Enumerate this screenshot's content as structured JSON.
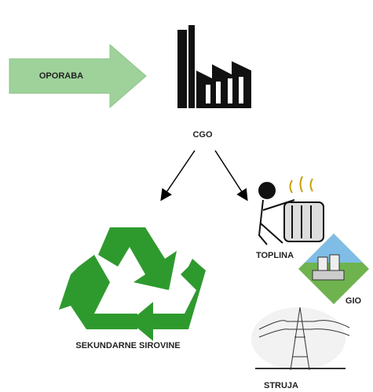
{
  "nodes": [
    {
      "label": "OPORABA"
    },
    {
      "label": "CGO"
    },
    {
      "label": "SEKUNDARNE SIROVINE"
    },
    {
      "label": "TOPLINA"
    },
    {
      "label": "GIO"
    },
    {
      "label": "STRUJA"
    }
  ]
}
